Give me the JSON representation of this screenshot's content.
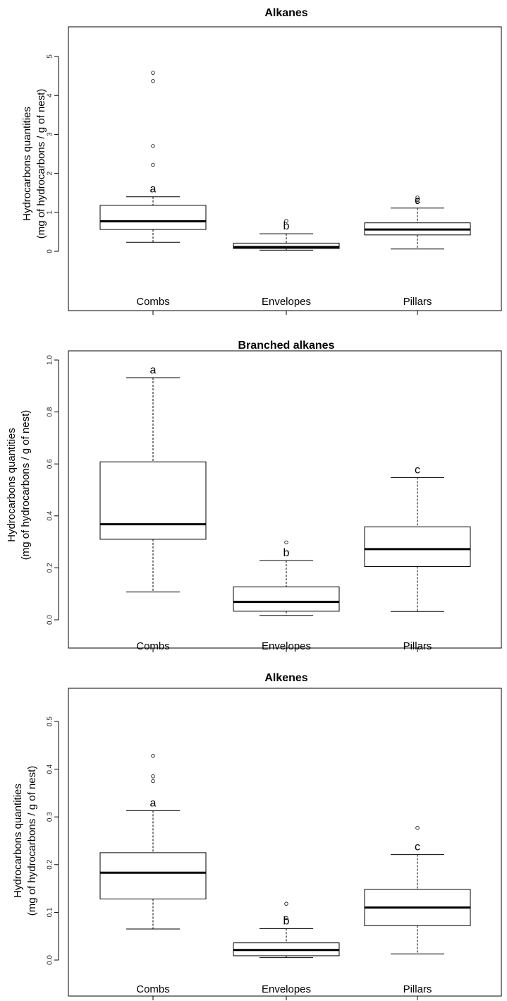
{
  "chart_data": [
    {
      "type": "box",
      "title": "Alkanes",
      "ylabel": [
        "Hydrocarbons quantities",
        "(mg of hydrocarbons / g of nest)"
      ],
      "ylim": [
        0,
        5
      ],
      "yticks": [
        "0",
        "1",
        "2",
        "3",
        "4",
        "5"
      ],
      "categories": [
        "Combs",
        "Envelopes",
        "Pillars"
      ],
      "boxes": [
        {
          "category": "Combs",
          "letter": "a",
          "whisker_low": 0.23,
          "q1": 0.56,
          "median": 0.77,
          "q3": 1.18,
          "whisker_high": 1.4,
          "outliers": [
            2.22,
            2.7,
            4.37,
            4.58
          ]
        },
        {
          "category": "Envelopes",
          "letter": "b",
          "whisker_low": 0.03,
          "q1": 0.07,
          "median": 0.11,
          "q3": 0.21,
          "whisker_high": 0.45,
          "outliers": [
            0.78
          ]
        },
        {
          "category": "Pillars",
          "letter": "c",
          "whisker_low": 0.06,
          "q1": 0.42,
          "median": 0.56,
          "q3": 0.73,
          "whisker_high": 1.11,
          "outliers": [
            1.26,
            1.32,
            1.38
          ]
        }
      ]
    },
    {
      "type": "box",
      "title": "Branched alkanes",
      "ylabel": [
        "Hydrocarbons quantities",
        "(mg of hydrocarbons / g of nest)"
      ],
      "ylim": [
        0,
        1.0
      ],
      "yticks": [
        "0.0",
        "0.2",
        "0.4",
        "0.6",
        "0.8",
        "1.0"
      ],
      "categories": [
        "Combs",
        "Envelopes",
        "Pillars"
      ],
      "boxes": [
        {
          "category": "Combs",
          "letter": "a",
          "whisker_low": 0.107,
          "q1": 0.31,
          "median": 0.368,
          "q3": 0.608,
          "whisker_high": 0.932,
          "outliers": []
        },
        {
          "category": "Envelopes",
          "letter": "b",
          "whisker_low": 0.017,
          "q1": 0.033,
          "median": 0.069,
          "q3": 0.127,
          "whisker_high": 0.228,
          "outliers": [
            0.298
          ]
        },
        {
          "category": "Pillars",
          "letter": "c",
          "whisker_low": 0.032,
          "q1": 0.205,
          "median": 0.272,
          "q3": 0.358,
          "whisker_high": 0.548,
          "outliers": []
        }
      ]
    },
    {
      "type": "box",
      "title": "Alkenes",
      "ylabel": [
        "Hydrocarbons quantities",
        "(mg of hydrocarbons / g of nest)"
      ],
      "ylim": [
        0,
        0.5
      ],
      "yticks": [
        "0.0",
        "0.1",
        "0.2",
        "0.3",
        "0.4",
        "0.5"
      ],
      "categories": [
        "Combs",
        "Envelopes",
        "Pillars"
      ],
      "boxes": [
        {
          "category": "Combs",
          "letter": "a",
          "whisker_low": 0.065,
          "q1": 0.128,
          "median": 0.183,
          "q3": 0.225,
          "whisker_high": 0.313,
          "outliers": [
            0.375,
            0.385,
            0.428
          ]
        },
        {
          "category": "Envelopes",
          "letter": "b",
          "whisker_low": 0.005,
          "q1": 0.009,
          "median": 0.021,
          "q3": 0.036,
          "whisker_high": 0.066,
          "outliers": [
            0.088,
            0.118
          ]
        },
        {
          "category": "Pillars",
          "letter": "c",
          "whisker_low": 0.013,
          "q1": 0.072,
          "median": 0.11,
          "q3": 0.148,
          "whisker_high": 0.221,
          "outliers": [
            0.277
          ]
        }
      ]
    }
  ]
}
